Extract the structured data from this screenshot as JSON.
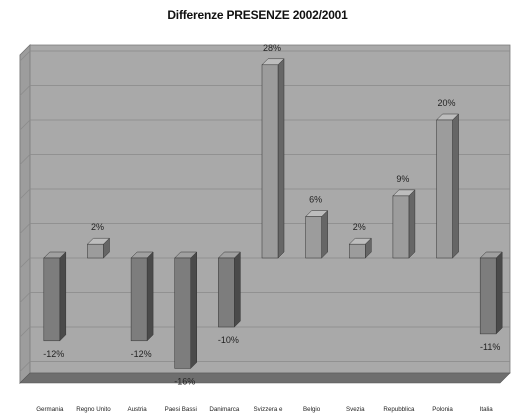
{
  "chart_data": {
    "type": "bar",
    "title": "Differenze PRESENZE 2002/2001",
    "xlabel": "",
    "ylabel": "",
    "ylim": [
      -20,
      32
    ],
    "grid": true,
    "legend": "none",
    "categories": [
      "Germania",
      "Regno Unito",
      "Austria",
      "Paesi Bassi",
      "Danimarca",
      "Svizzera e",
      "Belgio",
      "Svezia",
      "Repubblica",
      "Polonia",
      "Italia"
    ],
    "values": [
      -12,
      2,
      -12,
      -16,
      -10,
      28,
      6,
      2,
      9,
      20,
      -11
    ],
    "data_labels": [
      "-12%",
      "2%",
      "-12%",
      "-16%",
      "-10%",
      "28%",
      "6%",
      "2%",
      "9%",
      "20%",
      "-11%"
    ]
  },
  "colors": {
    "wall": "#a9a9a9",
    "wall_side": "#9d9d9d",
    "floor": "#6e6e6e",
    "grid": "#8a8a8a",
    "positive_front": "#9c9c9c",
    "positive_side": "#666666",
    "positive_top": "#bdbdbd",
    "negative_front": "#7d7d7d",
    "negative_side": "#4a4a4a",
    "negative_top": "#a0a0a0"
  }
}
